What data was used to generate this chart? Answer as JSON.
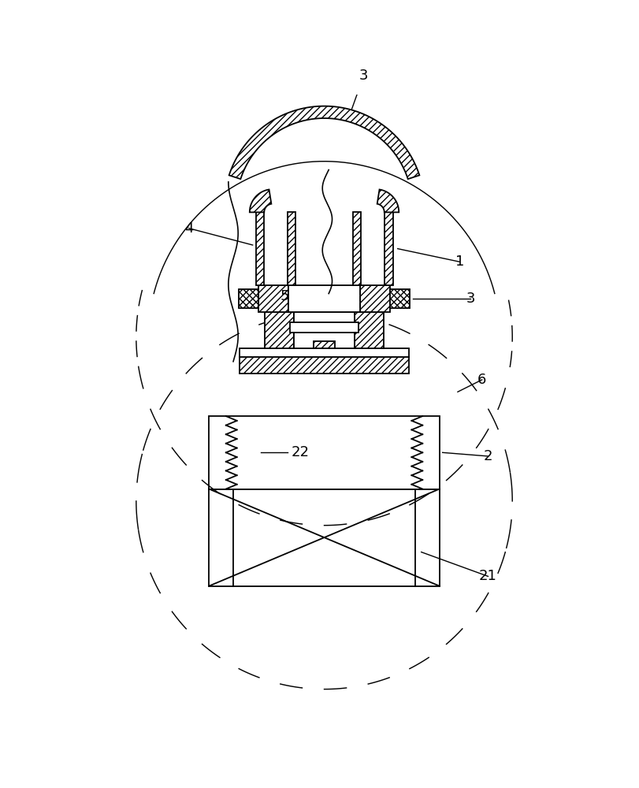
{
  "bg_color": "#ffffff",
  "line_color": "#000000",
  "fig_width": 8.12,
  "fig_height": 10.0,
  "label_fontsize": 13
}
